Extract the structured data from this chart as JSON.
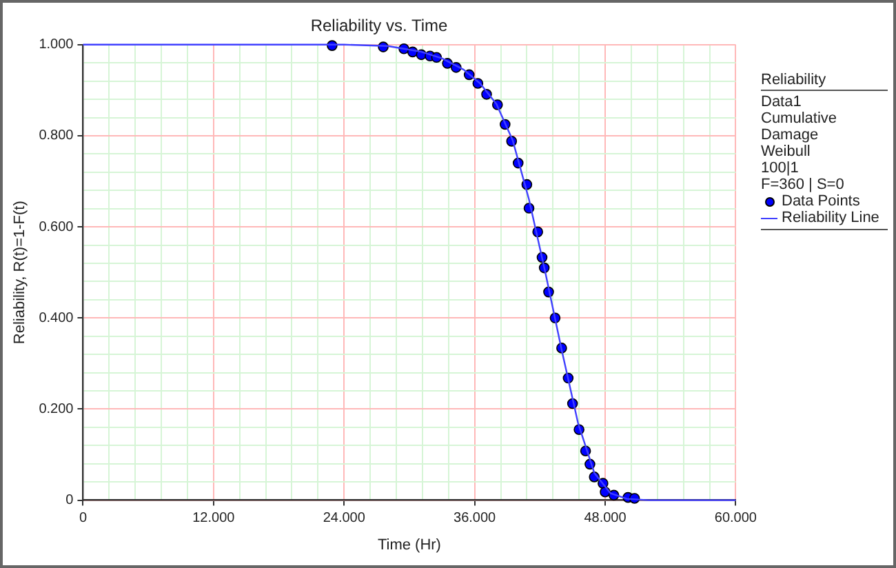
{
  "chart_data": {
    "type": "scatter",
    "title": "Reliability vs. Time",
    "xlabel": "Time (Hr)",
    "ylabel": "Reliability, R(t)=1-F(t)",
    "legend_title": "Reliability",
    "annotations": [
      "Data1",
      "Cumulative Damage",
      "Weibull",
      "100|1",
      "F=360 | S=0"
    ],
    "xlim": [
      0,
      60
    ],
    "ylim": [
      0,
      1
    ],
    "xticks": [
      0,
      {
        "value": 2.4,
        "label": null
      },
      {
        "value": 4.8,
        "label": null
      },
      {
        "value": 7.2,
        "label": null
      },
      {
        "value": 9.6,
        "label": null
      },
      {
        "value": 12,
        "label": "12.000"
      },
      {
        "value": 14.4,
        "label": null
      },
      {
        "value": 16.8,
        "label": null
      },
      {
        "value": 19.2,
        "label": null
      },
      {
        "value": 21.6,
        "label": null
      },
      {
        "value": 24,
        "label": "24.000"
      },
      {
        "value": 26.4,
        "label": null
      },
      {
        "value": 28.8,
        "label": null
      },
      {
        "value": 31.2,
        "label": null
      },
      {
        "value": 33.6,
        "label": null
      },
      {
        "value": 36,
        "label": "36.000"
      },
      {
        "value": 38.4,
        "label": null
      },
      {
        "value": 40.8,
        "label": null
      },
      {
        "value": 43.2,
        "label": null
      },
      {
        "value": 45.6,
        "label": null
      },
      {
        "value": 48,
        "label": "48.000"
      },
      {
        "value": 50.4,
        "label": null
      },
      {
        "value": 52.8,
        "label": null
      },
      {
        "value": 55.2,
        "label": null
      },
      {
        "value": 57.6,
        "label": null
      },
      {
        "value": 60,
        "label": "60.000"
      }
    ],
    "yticks": [
      0,
      {
        "value": 0.04,
        "label": null
      },
      {
        "value": 0.08,
        "label": null
      },
      {
        "value": 0.12,
        "label": null
      },
      {
        "value": 0.16,
        "label": null
      },
      {
        "value": 0.2,
        "label": "0.200"
      },
      {
        "value": 0.24,
        "label": null
      },
      {
        "value": 0.28,
        "label": null
      },
      {
        "value": 0.32,
        "label": null
      },
      {
        "value": 0.36,
        "label": null
      },
      {
        "value": 0.4,
        "label": "0.400"
      },
      {
        "value": 0.44,
        "label": null
      },
      {
        "value": 0.48,
        "label": null
      },
      {
        "value": 0.52,
        "label": null
      },
      {
        "value": 0.56,
        "label": null
      },
      {
        "value": 0.6,
        "label": "0.600"
      },
      {
        "value": 0.64,
        "label": null
      },
      {
        "value": 0.68,
        "label": null
      },
      {
        "value": 0.72,
        "label": null
      },
      {
        "value": 0.76,
        "label": null
      },
      {
        "value": 0.8,
        "label": "0.800"
      },
      {
        "value": 0.84,
        "label": null
      },
      {
        "value": 0.88,
        "label": null
      },
      {
        "value": 0.92,
        "label": null
      },
      {
        "value": 0.96,
        "label": null
      },
      {
        "value": 1,
        "label": "1.000"
      }
    ],
    "grid": true,
    "legend": "right",
    "series": [
      {
        "name": "Data Points",
        "type": "scatter",
        "marker": "circle",
        "color": "#0000ff",
        "x": [
          22.9,
          27.6,
          29.5,
          30.3,
          31.1,
          31.9,
          32.5,
          33.5,
          34.3,
          35.5,
          36.3,
          37.1,
          38.1,
          38.8,
          39.4,
          40.0,
          40.8,
          41.0,
          41.8,
          42.2,
          42.4,
          42.8,
          43.4,
          44.0,
          44.6,
          45.0,
          45.6,
          46.2,
          46.6,
          47.0,
          47.8,
          48.0,
          48.8,
          50.1,
          50.7
        ],
        "values": [
          0.998,
          0.995,
          0.991,
          0.984,
          0.978,
          0.975,
          0.972,
          0.959,
          0.95,
          0.934,
          0.915,
          0.891,
          0.868,
          0.825,
          0.788,
          0.74,
          0.693,
          0.641,
          0.589,
          0.533,
          0.51,
          0.457,
          0.4,
          0.334,
          0.268,
          0.212,
          0.155,
          0.108,
          0.079,
          0.051,
          0.037,
          0.018,
          0.011,
          0.006,
          0.004
        ]
      },
      {
        "name": "Reliability Line",
        "type": "line",
        "marker": "none",
        "color": "#4040ff",
        "x": [
          0,
          24,
          28,
          31,
          33,
          35,
          36.5,
          38,
          39.5,
          41,
          42.5,
          44,
          45.5,
          47,
          48.5,
          50,
          52,
          60
        ],
        "values": [
          1,
          1,
          0.997,
          0.985,
          0.97,
          0.945,
          0.915,
          0.87,
          0.79,
          0.66,
          0.5,
          0.33,
          0.17,
          0.06,
          0.015,
          0.003,
          0,
          0
        ]
      }
    ]
  }
}
